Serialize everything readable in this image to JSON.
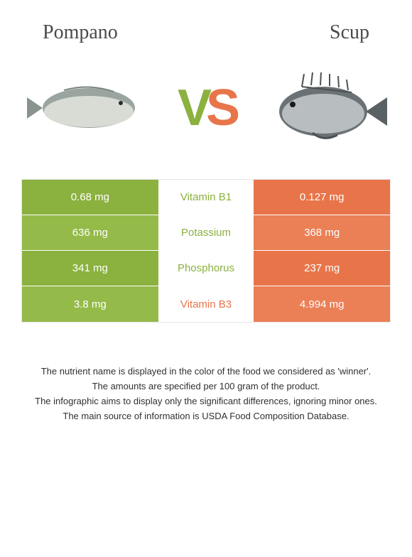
{
  "colors": {
    "left_food": "#8bb13f",
    "right_food": "#e8754a",
    "left_cell_alt": "#94ba49",
    "right_cell_alt": "#eb7f56",
    "text_on_color": "#ffffff",
    "header_text": "#4a4a4a",
    "footnote_text": "#303030"
  },
  "header": {
    "left_label": "Pompano",
    "right_label": "Scup"
  },
  "vs": {
    "v": "V",
    "s": "S"
  },
  "rows": [
    {
      "left_value": "0.68 mg",
      "nutrient": "Vitamin B1",
      "right_value": "0.127 mg",
      "winner": "left"
    },
    {
      "left_value": "636 mg",
      "nutrient": "Potassium",
      "right_value": "368 mg",
      "winner": "left"
    },
    {
      "left_value": "341 mg",
      "nutrient": "Phosphorus",
      "right_value": "237 mg",
      "winner": "left"
    },
    {
      "left_value": "3.8 mg",
      "nutrient": "Vitamin B3",
      "right_value": "4.994 mg",
      "winner": "right"
    }
  ],
  "footnotes": [
    "The nutrient name is displayed in the color of the food we considered as 'winner'.",
    "The amounts are specified per 100 gram of the product.",
    "The infographic aims to display only the significant differences, ignoring minor ones.",
    "The main source of information is USDA Food Composition Database."
  ]
}
